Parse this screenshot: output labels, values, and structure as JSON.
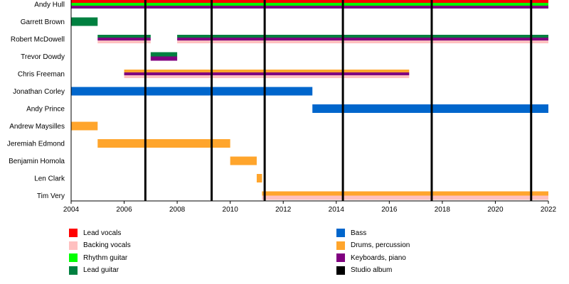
{
  "chart_data": {
    "type": "timeline",
    "members": [
      {
        "name": "Andy Hull",
        "segments": [
          {
            "start": 2004,
            "end": 2022,
            "roles": [
              "lead_vocals",
              "rhythm_guitar",
              "keyboards"
            ]
          }
        ]
      },
      {
        "name": "Garrett Brown",
        "segments": [
          {
            "start": 2004,
            "end": 2005,
            "roles": [
              "lead_guitar"
            ]
          }
        ]
      },
      {
        "name": "Robert McDowell",
        "segments": [
          {
            "start": 2005,
            "end": 2007,
            "roles": [
              "lead_guitar",
              "keyboards",
              "backing_vocals"
            ]
          },
          {
            "start": 2008,
            "end": 2022,
            "roles": [
              "lead_guitar",
              "keyboards",
              "backing_vocals"
            ]
          }
        ]
      },
      {
        "name": "Trevor Dowdy",
        "segments": [
          {
            "start": 2007,
            "end": 2008,
            "roles": [
              "lead_guitar",
              "keyboards"
            ]
          }
        ]
      },
      {
        "name": "Chris Freeman",
        "segments": [
          {
            "start": 2006,
            "end": 2016.75,
            "roles": [
              "drums",
              "keyboards",
              "backing_vocals"
            ]
          }
        ]
      },
      {
        "name": "Jonathan Corley",
        "segments": [
          {
            "start": 2004,
            "end": 2013.1,
            "roles": [
              "bass"
            ]
          }
        ]
      },
      {
        "name": "Andy Prince",
        "segments": [
          {
            "start": 2013.1,
            "end": 2022,
            "roles": [
              "bass"
            ]
          }
        ]
      },
      {
        "name": "Andrew Maysilles",
        "segments": [
          {
            "start": 2004,
            "end": 2005,
            "roles": [
              "drums"
            ]
          }
        ]
      },
      {
        "name": "Jeremiah Edmond",
        "segments": [
          {
            "start": 2005,
            "end": 2010,
            "roles": [
              "drums"
            ]
          }
        ]
      },
      {
        "name": "Benjamin Homola",
        "segments": [
          {
            "start": 2010,
            "end": 2011,
            "roles": [
              "drums"
            ]
          }
        ]
      },
      {
        "name": "Len Clark",
        "segments": [
          {
            "start": 2011,
            "end": 2011.2,
            "roles": [
              "drums"
            ]
          }
        ]
      },
      {
        "name": "Tim Very",
        "segments": [
          {
            "start": 2011.2,
            "end": 2022,
            "roles": [
              "drums",
              "backing_vocals"
            ]
          }
        ]
      }
    ],
    "albums": [
      2006.8,
      2009.3,
      2011.3,
      2014.25,
      2017.6,
      2021.35
    ],
    "x_ticks": [
      "2004",
      "2006",
      "2008",
      "2010",
      "2012",
      "2014",
      "2016",
      "2018",
      "2020",
      "2022"
    ],
    "xlim": [
      2004,
      2022
    ],
    "legend": [
      {
        "key": "lead_vocals",
        "label": "Lead vocals",
        "color": "#ff0000"
      },
      {
        "key": "backing_vocals",
        "label": "Backing vocals",
        "color": "#ffc0c0"
      },
      {
        "key": "rhythm_guitar",
        "label": "Rhythm guitar",
        "color": "#00ff00"
      },
      {
        "key": "lead_guitar",
        "label": "Lead guitar",
        "color": "#008040"
      },
      {
        "key": "bass",
        "label": "Bass",
        "color": "#0066cc"
      },
      {
        "key": "drums",
        "label": "Drums, percussion",
        "color": "#ffa52c"
      },
      {
        "key": "keyboards",
        "label": "Keyboards, piano",
        "color": "#800080"
      },
      {
        "key": "album",
        "label": "Studio album",
        "color": "#000000"
      }
    ]
  }
}
